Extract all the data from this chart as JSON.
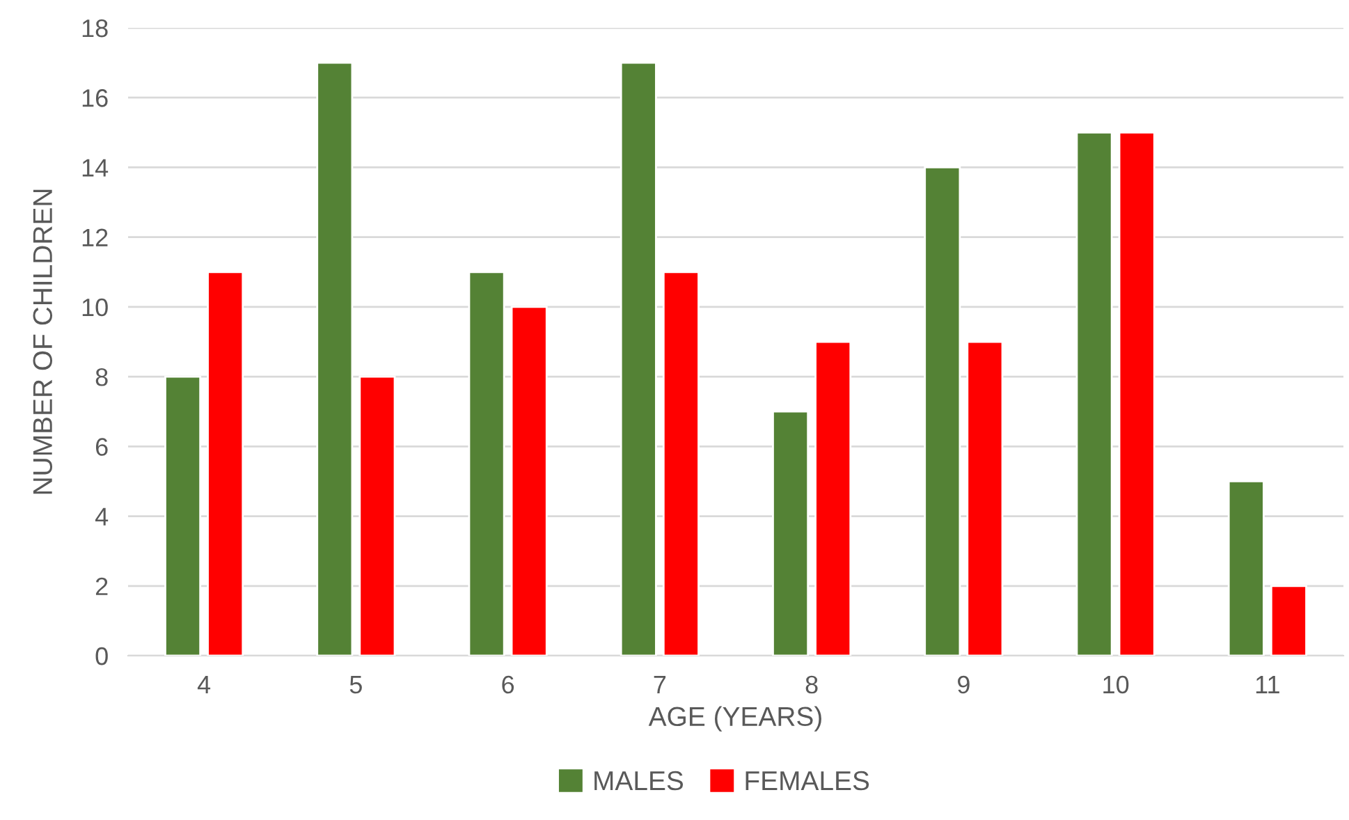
{
  "chart_data": {
    "type": "bar",
    "xlabel": "AGE (YEARS)",
    "ylabel": "NUMBER OF CHILDREN",
    "categories": [
      "4",
      "5",
      "6",
      "7",
      "8",
      "9",
      "10",
      "11"
    ],
    "series": [
      {
        "name": "MALES",
        "color": "#548235",
        "values": [
          8,
          17,
          11,
          17,
          7,
          14,
          15,
          5
        ]
      },
      {
        "name": "FEMALES",
        "color": "#ff0000",
        "values": [
          11,
          8,
          10,
          11,
          9,
          9,
          15,
          2
        ]
      }
    ],
    "ylim": [
      0,
      18
    ],
    "yticks": [
      0,
      2,
      4,
      6,
      8,
      10,
      12,
      14,
      16,
      18
    ],
    "grid": "y",
    "legend": "bottom"
  }
}
